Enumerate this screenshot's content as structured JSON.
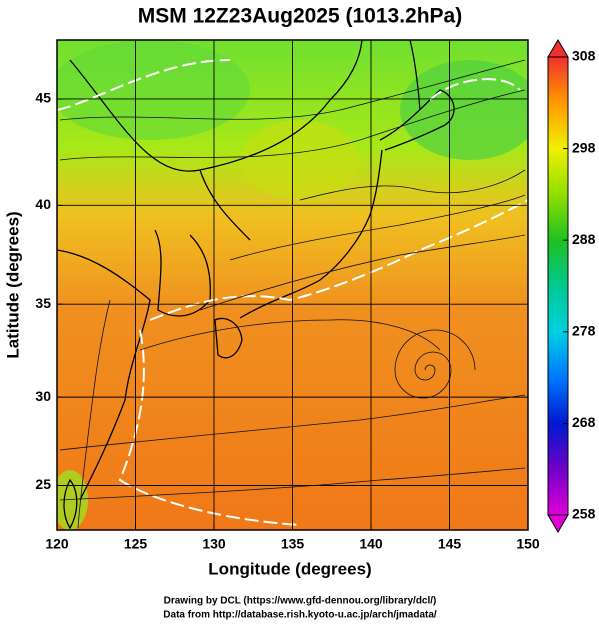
{
  "chart_data": {
    "type": "map",
    "title": "MSM 12Z23Aug2025 (1013.2hPa)",
    "x_label": "Longitude (degrees)",
    "y_label": "Latitude  (degrees)",
    "projection": "mercator",
    "xlim": [
      120,
      150
    ],
    "xticks": [
      120,
      125,
      130,
      135,
      140,
      145,
      150
    ],
    "ylim": [
      22.4,
      47.6
    ],
    "yticks": [
      25,
      30,
      35,
      40,
      45
    ],
    "grid": true,
    "colorbar": {
      "lim": [
        258,
        308
      ],
      "ticks": [
        258,
        268,
        278,
        288,
        298,
        308
      ],
      "colors": [
        "#e000d8",
        "#7000c8",
        "#0018d0",
        "#0078ff",
        "#00d0e0",
        "#00c890",
        "#20c020",
        "#90e000",
        "#f0f000",
        "#ff9a00",
        "#f03030"
      ]
    }
  },
  "footer": [
    "Drawing by DCL (https://www.gfd-dennou.org/library/dcl/)",
    "Data from http://database.rish.kyoto-u.ac.jp/arch/jmadata/"
  ]
}
